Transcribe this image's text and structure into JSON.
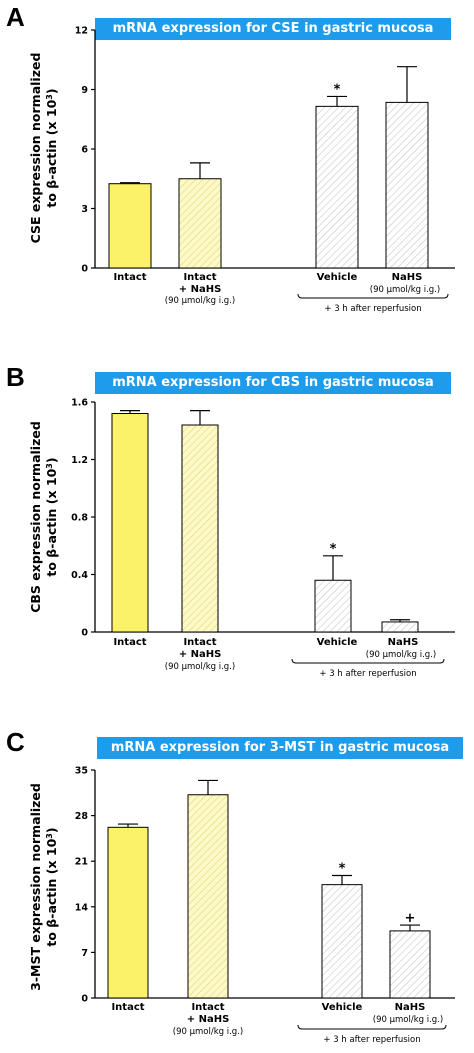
{
  "chart_data": [
    {
      "type": "bar",
      "panel_label": "A",
      "title": "mRNA expression for CSE in gastric mucosa",
      "ylabel_line1": "CSE expression normalized",
      "ylabel_line2": "to β-actin (x 10",
      "ylabel_exp": "3",
      "ylabel_close": ")",
      "ylim": [
        0,
        12
      ],
      "yticks": [
        "0",
        "3",
        "6",
        "9",
        "12"
      ],
      "categories": [
        "Intact",
        "Intact + NaHS (90 µmol/kg i.g.)",
        "Vehicle",
        "NaHS (90 µmol/kg i.g.)"
      ],
      "values": [
        4.25,
        4.5,
        8.15,
        8.35
      ],
      "errors": [
        0.05,
        0.8,
        0.5,
        1.8
      ],
      "significance": [
        "",
        "",
        "*",
        ""
      ],
      "fills": [
        "yellow",
        "yellow-hatch",
        "white-hatch",
        "white-hatch"
      ],
      "labels": {
        "intact": "Intact",
        "intact2_line1": "Intact",
        "intact2_line2": "+ NaHS",
        "dose": "(90 µmol/kg i.g.)",
        "vehicle": "Vehicle",
        "nahs": "NaHS",
        "group": "+ 3 h after reperfusion"
      }
    },
    {
      "type": "bar",
      "panel_label": "B",
      "title": "mRNA expression for CBS in gastric mucosa",
      "ylabel_line1": "CBS expression normalized",
      "ylabel_line2": "to β-actin (x 10",
      "ylabel_exp": "3",
      "ylabel_close": ")",
      "ylim": [
        0,
        1.6
      ],
      "yticks": [
        "0",
        "0.4",
        "0.8",
        "1.2",
        "1.6"
      ],
      "categories": [
        "Intact",
        "Intact + NaHS (90 µmol/kg i.g.)",
        "Vehicle",
        "NaHS (90 µmol/kg i.g.)"
      ],
      "values": [
        1.52,
        1.44,
        0.36,
        0.07
      ],
      "errors": [
        0.02,
        0.1,
        0.17,
        0.015
      ],
      "significance": [
        "",
        "",
        "*",
        ""
      ],
      "fills": [
        "yellow",
        "yellow-hatch",
        "white-hatch",
        "white-hatch"
      ],
      "labels": {
        "intact": "Intact",
        "intact2_line1": "Intact",
        "intact2_line2": "+ NaHS",
        "dose": "(90 µmol/kg i.g.)",
        "vehicle": "Vehicle",
        "nahs": "NaHS",
        "group": "+ 3 h after reperfusion"
      }
    },
    {
      "type": "bar",
      "panel_label": "C",
      "title": "mRNA expression for 3-MST in gastric mucosa",
      "ylabel_line1": "3-MST expression normalized",
      "ylabel_line2": "to β-actin (x 10",
      "ylabel_exp": "3",
      "ylabel_close": ")",
      "ylim": [
        0,
        35
      ],
      "yticks": [
        "0",
        "7",
        "14",
        "21",
        "28",
        "35"
      ],
      "categories": [
        "Intact",
        "Intact + NaHS (90 µmol/kg i.g.)",
        "Vehicle",
        "NaHS (90 µmol/kg i.g.)"
      ],
      "values": [
        26.2,
        31.2,
        17.4,
        10.3
      ],
      "errors": [
        0.5,
        2.2,
        1.4,
        0.9
      ],
      "significance": [
        "",
        "",
        "*",
        "+"
      ],
      "fills": [
        "yellow",
        "yellow-hatch",
        "white-hatch",
        "white-hatch"
      ],
      "labels": {
        "intact": "Intact",
        "intact2_line1": "Intact",
        "intact2_line2": "+ NaHS",
        "dose": "(90 µmol/kg i.g.)",
        "vehicle": "Vehicle",
        "nahs": "NaHS",
        "group": "+ 3 h after reperfusion"
      }
    }
  ]
}
